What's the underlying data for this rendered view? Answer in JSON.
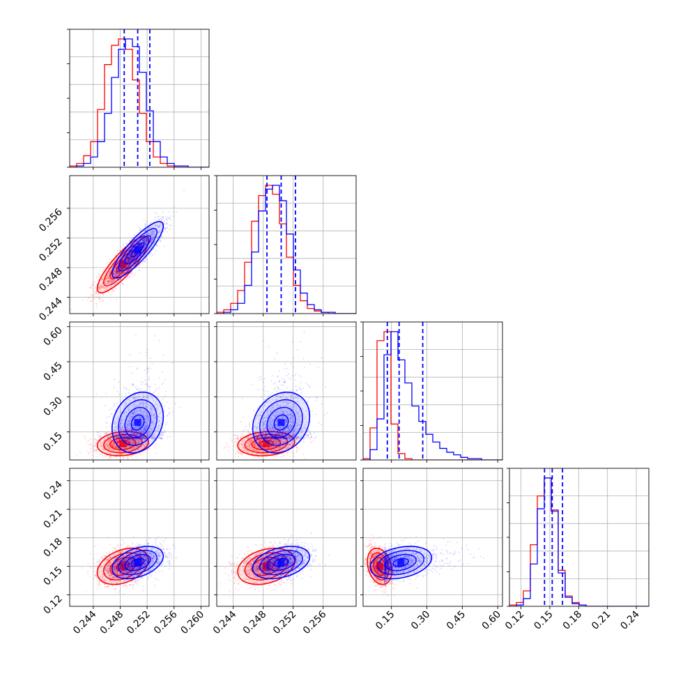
{
  "chart_data": {
    "type": "corner",
    "title": "",
    "grid": true,
    "parameters": [
      {
        "index": 0,
        "range": [
          0.2405,
          0.2612
        ],
        "ticks": [
          0.244,
          0.248,
          0.252,
          0.256,
          0.26
        ],
        "tick_labels": [
          "0.244",
          "0.248",
          "0.252",
          "0.256",
          "0.260"
        ]
      },
      {
        "index": 1,
        "range": [
          0.2418,
          0.2604
        ],
        "ticks": [
          0.244,
          0.248,
          0.252,
          0.256
        ],
        "tick_labels": [
          "0.244",
          "0.248",
          "0.252",
          "0.256"
        ]
      },
      {
        "index": 2,
        "range": [
          0.03,
          0.62
        ],
        "ticks": [
          0.15,
          0.3,
          0.45,
          0.6
        ],
        "tick_labels": [
          "0.15",
          "0.30",
          "0.45",
          "0.60"
        ]
      },
      {
        "index": 3,
        "range": [
          0.108,
          0.253
        ],
        "ticks": [
          0.12,
          0.15,
          0.18,
          0.21,
          0.24
        ],
        "tick_labels": [
          "0.12",
          "0.15",
          "0.18",
          "0.21",
          "0.24"
        ]
      }
    ],
    "series": [
      {
        "color": "#ff0000",
        "marginals": [
          {
            "mean": 0.2484,
            "sd": 0.0019
          },
          {
            "mean": 0.2484,
            "sd": 0.0019
          },
          {
            "mean": 0.1,
            "sd": 0.026
          },
          {
            "mean": 0.15,
            "sd": 0.0095
          }
        ],
        "hist_counts": [
          [
            1,
            3,
            9,
            20,
            45,
            80,
            95,
            100,
            92,
            68,
            42,
            20,
            8,
            3,
            1,
            0,
            0,
            0,
            0,
            0
          ],
          [
            1,
            3,
            8,
            18,
            40,
            72,
            92,
            100,
            93,
            70,
            44,
            22,
            10,
            4,
            2,
            1,
            0,
            0,
            0,
            0
          ],
          [
            1,
            25,
            93,
            100,
            28,
            5,
            1,
            0,
            0,
            0,
            0,
            0,
            0,
            0,
            0,
            0,
            0,
            0,
            0,
            0
          ],
          [
            1,
            3,
            12,
            48,
            86,
            100,
            74,
            28,
            8,
            3,
            1,
            0,
            0,
            0,
            0,
            0,
            0,
            0,
            0,
            0
          ]
        ],
        "correlations": [
          [
            1,
            0.85,
            0.15,
            0.35
          ],
          [
            0.85,
            1,
            0.15,
            0.3
          ],
          [
            0.15,
            0.15,
            1,
            -0.25
          ],
          [
            0.35,
            0.3,
            -0.25,
            1
          ]
        ]
      },
      {
        "color": "#0000ff",
        "marginals": [
          {
            "mean": 0.2506,
            "sd": 0.0019
          },
          {
            "mean": 0.2504,
            "sd": 0.0019
          },
          {
            "mean": 0.19,
            "sd": 0.065
          },
          {
            "mean": 0.154,
            "sd": 0.0085
          }
        ],
        "hist_counts": [
          [
            0,
            1,
            3,
            8,
            20,
            42,
            70,
            92,
            100,
            94,
            74,
            44,
            20,
            8,
            3,
            1,
            1,
            0,
            0,
            0
          ],
          [
            0,
            1,
            3,
            8,
            22,
            48,
            80,
            97,
            100,
            88,
            62,
            34,
            16,
            7,
            3,
            1,
            1,
            0,
            0,
            0
          ],
          [
            0,
            8,
            32,
            82,
            100,
            78,
            60,
            42,
            30,
            20,
            14,
            9,
            6,
            4,
            2,
            1,
            1,
            0,
            0,
            0
          ],
          [
            0,
            1,
            6,
            33,
            76,
            100,
            75,
            26,
            7,
            2,
            1,
            0,
            0,
            0,
            0,
            0,
            0,
            0,
            0,
            0
          ]
        ],
        "quantiles": [
          [
            0.2486,
            0.2506,
            0.2524
          ],
          [
            0.2485,
            0.2504,
            0.2523
          ],
          [
            0.1325,
            0.1825,
            0.2825
          ],
          [
            0.1445,
            0.1525,
            0.1632
          ]
        ],
        "correlations": [
          [
            1,
            0.85,
            0.2,
            0.4
          ],
          [
            0.85,
            1,
            0.2,
            0.35
          ],
          [
            0.2,
            0.2,
            1,
            0.3
          ],
          [
            0.4,
            0.35,
            0.3,
            1
          ]
        ]
      }
    ]
  }
}
